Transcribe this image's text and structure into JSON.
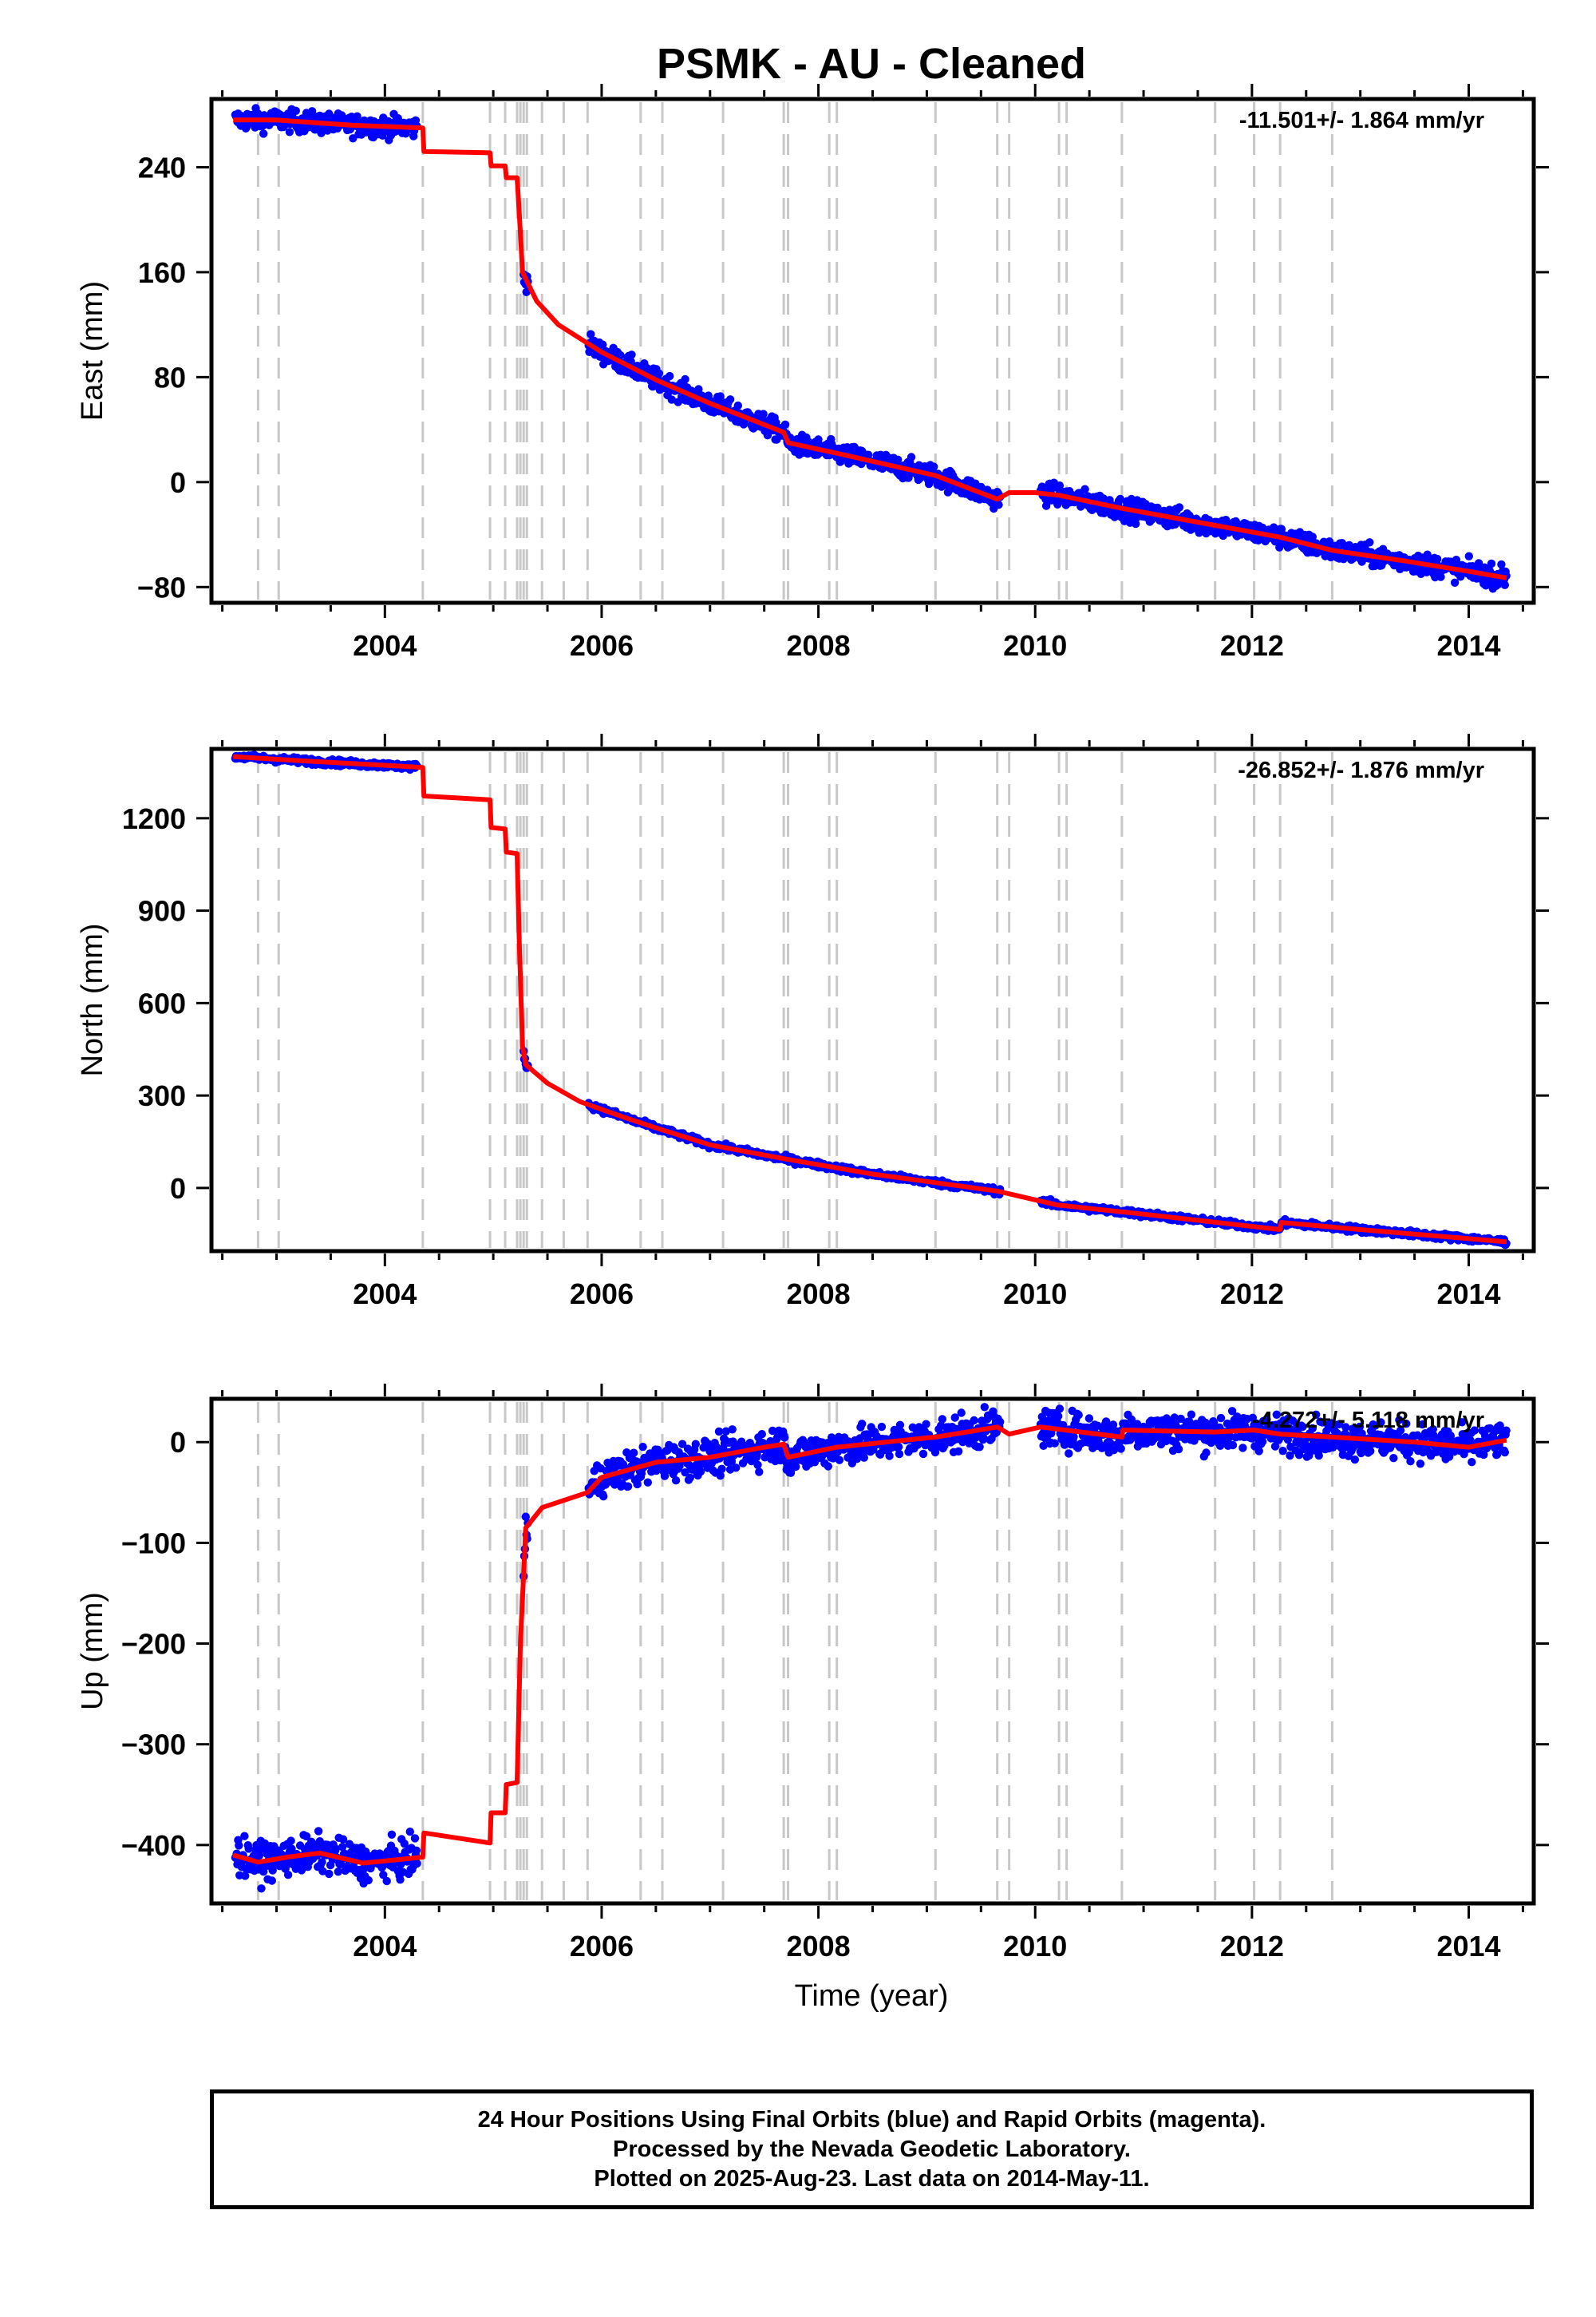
{
  "chart_data": {
    "type": "scatter",
    "title": "PSMK  - AU - Cleaned",
    "xlabel": "Time (year)",
    "x_ticks": [
      2004,
      2006,
      2008,
      2010,
      2012,
      2014
    ],
    "xlim": [
      2002.4,
      2014.6
    ],
    "colors": {
      "points": "#0000ff",
      "model": "#ff0000",
      "events": "#c8c8c8",
      "frame": "#000000"
    },
    "event_lines": [
      2002.83,
      2003.02,
      2004.35,
      2004.97,
      2005.11,
      2005.22,
      2005.25,
      2005.28,
      2005.31,
      2005.45,
      2005.65,
      2005.87,
      2006.36,
      2006.56,
      2007.12,
      2007.68,
      2007.72,
      2008.1,
      2008.17,
      2009.08,
      2009.65,
      2009.76,
      2010.22,
      2010.29,
      2010.8,
      2011.66,
      2012.02,
      2012.26,
      2012.74
    ],
    "gap": [
      2009.7,
      2010.05
    ],
    "panels": [
      {
        "key": "east",
        "ylabel": "East (mm)",
        "ylim": [
          -92,
          292
        ],
        "y_ticks": [
          -80,
          0,
          80,
          160,
          240
        ],
        "rate_label": "-11.501+/- 1.864 mm/yr",
        "noise": 4,
        "model": [
          [
            2002.6,
            276
          ],
          [
            2003.0,
            276
          ],
          [
            2003.7,
            272
          ],
          [
            2004.35,
            270
          ],
          [
            2004.36,
            252
          ],
          [
            2004.97,
            251
          ],
          [
            2004.98,
            241
          ],
          [
            2005.11,
            241
          ],
          [
            2005.12,
            232
          ],
          [
            2005.22,
            232
          ],
          [
            2005.24,
            205
          ],
          [
            2005.27,
            160
          ],
          [
            2005.4,
            138
          ],
          [
            2005.6,
            120
          ],
          [
            2006.0,
            99
          ],
          [
            2006.5,
            78
          ],
          [
            2007.0,
            60
          ],
          [
            2007.68,
            38
          ],
          [
            2007.72,
            30
          ],
          [
            2008.17,
            22
          ],
          [
            2009.08,
            5
          ],
          [
            2009.65,
            -13
          ],
          [
            2009.76,
            -8
          ],
          [
            2010.0,
            -8
          ],
          [
            2010.22,
            -10
          ],
          [
            2010.8,
            -20
          ],
          [
            2011.66,
            -33
          ],
          [
            2012.26,
            -42
          ],
          [
            2012.74,
            -52
          ],
          [
            2013.4,
            -60
          ],
          [
            2014.0,
            -68
          ],
          [
            2014.35,
            -73
          ]
        ]
      },
      {
        "key": "north",
        "ylabel": "North (mm)",
        "ylim": [
          -205,
          1425
        ],
        "y_ticks": [
          0,
          300,
          600,
          900,
          1200
        ],
        "rate_label": "-26.852+/- 1.876 mm/yr",
        "noise": 5,
        "model": [
          [
            2002.6,
            1400
          ],
          [
            2003.3,
            1385
          ],
          [
            2004.0,
            1372
          ],
          [
            2004.35,
            1365
          ],
          [
            2004.36,
            1272
          ],
          [
            2004.97,
            1260
          ],
          [
            2004.98,
            1170
          ],
          [
            2005.11,
            1165
          ],
          [
            2005.12,
            1090
          ],
          [
            2005.22,
            1085
          ],
          [
            2005.24,
            800
          ],
          [
            2005.27,
            460
          ],
          [
            2005.3,
            400
          ],
          [
            2005.5,
            340
          ],
          [
            2005.8,
            280
          ],
          [
            2006.2,
            230
          ],
          [
            2006.5,
            195
          ],
          [
            2007.0,
            140
          ],
          [
            2007.68,
            95
          ],
          [
            2008.5,
            45
          ],
          [
            2009.65,
            -10
          ],
          [
            2010.2,
            -55
          ],
          [
            2011.0,
            -85
          ],
          [
            2012.26,
            -135
          ],
          [
            2012.27,
            -112
          ],
          [
            2013.0,
            -135
          ],
          [
            2014.35,
            -175
          ]
        ]
      },
      {
        "key": "up",
        "ylabel": "Up (mm)",
        "ylim": [
          -458,
          43
        ],
        "y_ticks": [
          -400,
          -300,
          -200,
          -100,
          0
        ],
        "rate_label": "-4.272+/- 5.118 mm/yr",
        "noise": 9,
        "model": [
          [
            2002.6,
            -410
          ],
          [
            2002.83,
            -417
          ],
          [
            2003.1,
            -412
          ],
          [
            2003.4,
            -408
          ],
          [
            2003.8,
            -418
          ],
          [
            2004.35,
            -412
          ],
          [
            2004.36,
            -388
          ],
          [
            2004.97,
            -398
          ],
          [
            2004.98,
            -368
          ],
          [
            2005.11,
            -368
          ],
          [
            2005.12,
            -340
          ],
          [
            2005.22,
            -338
          ],
          [
            2005.25,
            -200
          ],
          [
            2005.3,
            -85
          ],
          [
            2005.45,
            -65
          ],
          [
            2005.87,
            -50
          ],
          [
            2006.0,
            -35
          ],
          [
            2006.5,
            -20
          ],
          [
            2007.0,
            -15
          ],
          [
            2007.5,
            -5
          ],
          [
            2007.68,
            -2
          ],
          [
            2007.72,
            -15
          ],
          [
            2008.17,
            -5
          ],
          [
            2008.8,
            2
          ],
          [
            2009.08,
            5
          ],
          [
            2009.65,
            15
          ],
          [
            2009.76,
            8
          ],
          [
            2010.05,
            15
          ],
          [
            2010.8,
            5
          ],
          [
            2010.81,
            12
          ],
          [
            2011.66,
            10
          ],
          [
            2012.02,
            12
          ],
          [
            2012.26,
            8
          ],
          [
            2012.74,
            5
          ],
          [
            2013.5,
            0
          ],
          [
            2014.0,
            -5
          ],
          [
            2014.35,
            2
          ]
        ]
      }
    ]
  },
  "footer": {
    "line1": "24 Hour Positions Using Final Orbits (blue) and Rapid Orbits (magenta).",
    "line2": "Processed by the Nevada Geodetic Laboratory.",
    "line3": "Plotted on 2025-Aug-23. Last data on 2014-May-11."
  }
}
